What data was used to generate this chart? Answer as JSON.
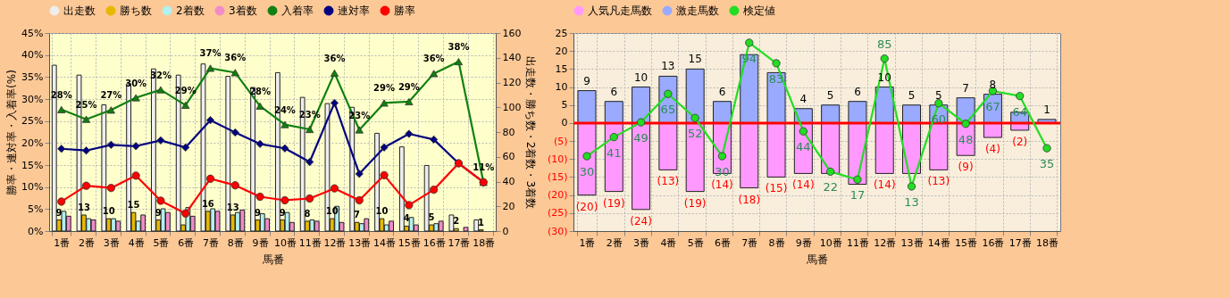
{
  "chart_data": [
    {
      "type": "bar",
      "categories": [
        "1番",
        "2番",
        "3番",
        "4番",
        "5番",
        "6番",
        "7番",
        "8番",
        "9番",
        "10番",
        "11番",
        "12番",
        "13番",
        "14番",
        "15番",
        "16番",
        "17番",
        "18番"
      ],
      "xlabel": "馬番",
      "ylabel": "勝率・連対率・入着率(%)",
      "y2label": "出走数・勝ち数・2着数・3着数",
      "ylim": [
        0,
        45
      ],
      "yticks": [
        {
          "value": 0,
          "label": "0%"
        },
        {
          "value": 5,
          "label": "5%"
        },
        {
          "value": 10,
          "label": "10%"
        },
        {
          "value": 15,
          "label": "15%"
        },
        {
          "value": 20,
          "label": "20%"
        },
        {
          "value": 25,
          "label": "25%"
        },
        {
          "value": 30,
          "label": "30%"
        },
        {
          "value": 35,
          "label": "35%"
        },
        {
          "value": 40,
          "label": "40%"
        },
        {
          "value": 45,
          "label": "45%"
        }
      ],
      "y2lim": [
        0,
        160
      ],
      "y2ticks": [
        0,
        20,
        40,
        60,
        80,
        100,
        120,
        140,
        160
      ],
      "grid": true,
      "legend": "top",
      "series": [
        {
          "name": "出走数",
          "color": "#eeeeee",
          "axis": "y2",
          "values": [
            134,
            126,
            102,
            119,
            131,
            126,
            135,
            125,
            116,
            128,
            108,
            103,
            100,
            79,
            68,
            53,
            13,
            9
          ]
        },
        {
          "name": "勝ち数",
          "color": "#e6b800",
          "axis": "y2",
          "values": [
            9,
            13,
            10,
            15,
            9,
            5,
            16,
            13,
            9,
            9,
            8,
            10,
            7,
            10,
            4,
            5,
            2,
            1
          ],
          "value_labels": [
            "9",
            "13",
            "10",
            "15",
            "9",
            null,
            "16",
            "13",
            "9",
            "9",
            "8",
            "10",
            "7",
            "10",
            "4",
            "5",
            "2",
            "1"
          ]
        },
        {
          "name": "2着数",
          "color": "#b3f0f0",
          "axis": "y2",
          "values": [
            16,
            10,
            10,
            8,
            18,
            19,
            18,
            15,
            14,
            15,
            9,
            20,
            6,
            5,
            11,
            6,
            0,
            0
          ]
        },
        {
          "name": "3着数",
          "color": "#f08cc8",
          "axis": "y2",
          "values": [
            12,
            9,
            8,
            13,
            15,
            12,
            16,
            17,
            10,
            7,
            8,
            7,
            10,
            8,
            5,
            8,
            3,
            0
          ]
        },
        {
          "name": "入着率",
          "type": "line",
          "color": "#108010",
          "marker": "triangle",
          "values": [
            27.6,
            25.4,
            27.5,
            30.3,
            32.1,
            28.6,
            37.0,
            36.0,
            28.4,
            24.2,
            23.1,
            35.9,
            23.0,
            29.1,
            29.4,
            35.8,
            38.5,
            11.1
          ],
          "value_labels": [
            "28%",
            "25%",
            "27%",
            "30%",
            "32%",
            "29%",
            "37%",
            "36%",
            "28%",
            "24%",
            "23%",
            "36%",
            "23%",
            "29%",
            "29%",
            "36%",
            "38%",
            "11%"
          ]
        },
        {
          "name": "連対率",
          "type": "line",
          "color": "#000080",
          "marker": "diamond",
          "values": [
            18.7,
            18.3,
            19.6,
            19.3,
            20.6,
            19.0,
            25.2,
            22.4,
            19.8,
            18.8,
            15.7,
            29.1,
            13.0,
            19.0,
            22.1,
            20.8,
            15.4,
            11.1
          ]
        },
        {
          "name": "勝率",
          "type": "line",
          "color": "#ff0000",
          "marker": "circle",
          "values": [
            6.7,
            10.3,
            9.8,
            12.6,
            6.9,
            4.0,
            11.9,
            10.4,
            7.8,
            7.0,
            7.4,
            9.7,
            7.0,
            12.7,
            5.9,
            9.4,
            15.4,
            11.1
          ]
        }
      ]
    },
    {
      "type": "bar",
      "categories": [
        "1番",
        "2番",
        "3番",
        "4番",
        "5番",
        "6番",
        "7番",
        "8番",
        "9番",
        "10番",
        "11番",
        "12番",
        "13番",
        "14番",
        "15番",
        "16番",
        "17番",
        "18番"
      ],
      "xlabel": "馬番",
      "ylim": [
        -30,
        25
      ],
      "yticks": [
        {
          "value": -30,
          "label": "(30)"
        },
        {
          "value": -25,
          "label": "(25)"
        },
        {
          "value": -20,
          "label": "(20)"
        },
        {
          "value": -15,
          "label": "(15)"
        },
        {
          "value": -10,
          "label": "(10)"
        },
        {
          "value": -5,
          "label": "(5)"
        },
        0,
        5,
        10,
        15,
        20,
        25
      ],
      "grid": true,
      "legend": "top",
      "stacked": true,
      "ref_lines": [
        {
          "axis": "y",
          "value": 0,
          "color": "#ff0000"
        }
      ],
      "series": [
        {
          "name": "人気凡走馬数",
          "color": "#ff99ff",
          "values": [
            -20,
            -19,
            -24,
            -13,
            -19,
            -14,
            -18,
            -15,
            -14,
            -14,
            -17,
            -14,
            -14,
            -13,
            -9,
            -4,
            -2,
            0
          ],
          "value_labels": [
            "(20)",
            "(19)",
            "(24)",
            "(13)",
            "(19)",
            "(14)",
            "(18)",
            "(15)",
            "(14)",
            null,
            null,
            "(14)",
            null,
            "(13)",
            "(9)",
            "(4)",
            "(2)",
            null
          ]
        },
        {
          "name": "激走馬数",
          "color": "#99aaff",
          "values": [
            9,
            6,
            10,
            13,
            15,
            6,
            19,
            14,
            4,
            5,
            6,
            10,
            5,
            5,
            7,
            8,
            3,
            1
          ],
          "value_labels": [
            "9",
            "6",
            "10",
            "13",
            "15",
            "6",
            null,
            null,
            "4",
            "5",
            "6",
            "10",
            "5",
            "5",
            "7",
            "8",
            null,
            "1"
          ]
        },
        {
          "name": "検定値",
          "type": "line",
          "color": "#22dd22",
          "marker": "circle",
          "values": [
            -9.2,
            -3.9,
            0.2,
            8.1,
            1.4,
            -9.2,
            22.3,
            16.6,
            -2.3,
            -13.5,
            -15.7,
            17.9,
            -17.6,
            5.5,
            -0.2,
            8.9,
            7.5,
            -7.0
          ]
        }
      ],
      "annotations": [
        {
          "text": "30",
          "x": "1番",
          "y": -9.2
        },
        {
          "text": "41",
          "x": "2番",
          "y": -3.9
        },
        {
          "text": "49",
          "x": "3番",
          "y": 0.2
        },
        {
          "text": "65",
          "x": "4番",
          "y": 8.1
        },
        {
          "text": "52",
          "x": "5番",
          "y": 1.4
        },
        {
          "text": "30",
          "x": "6番",
          "y": -9.2
        },
        {
          "text": "94",
          "x": "7番",
          "y": 22.3
        },
        {
          "text": "83",
          "x": "8番",
          "y": 16.6
        },
        {
          "text": "44",
          "x": "9番",
          "y": -2.3
        },
        {
          "text": "22",
          "x": "10番",
          "y": -13.5
        },
        {
          "text": "17",
          "x": "11番",
          "y": -15.7
        },
        {
          "text": "85",
          "x": "12番",
          "y": 17.9
        },
        {
          "text": "13",
          "x": "13番",
          "y": -17.6
        },
        {
          "text": "60",
          "x": "14番",
          "y": 5.5
        },
        {
          "text": "48",
          "x": "15番",
          "y": -0.2
        },
        {
          "text": "67",
          "x": "16番",
          "y": 8.9
        },
        {
          "text": "64",
          "x": "17番",
          "y": 7.5
        },
        {
          "text": "35",
          "x": "18番",
          "y": -7.0
        }
      ]
    }
  ]
}
